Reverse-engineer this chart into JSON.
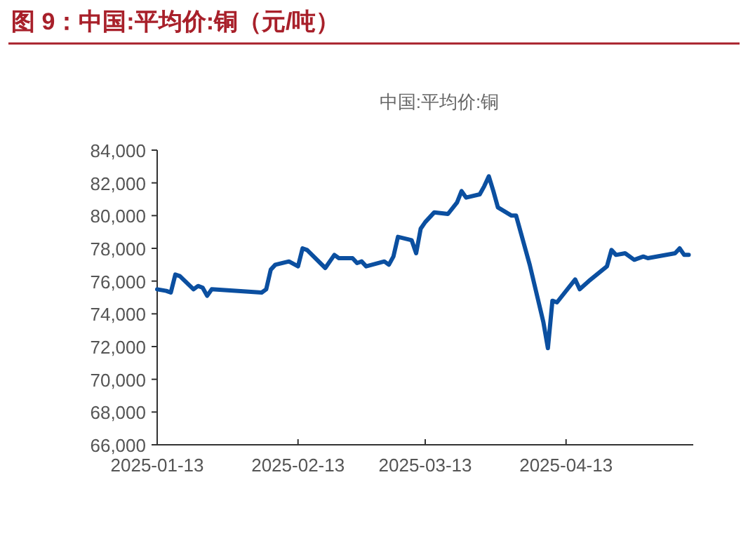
{
  "chart_data": {
    "type": "line",
    "title": "图 9：中国:平均价:铜（元/吨）",
    "subtitle": "中国:平均价:铜",
    "x": [
      "2025-01-13",
      "2025-01-15",
      "2025-01-16",
      "2025-01-17",
      "2025-01-18",
      "2025-01-21",
      "2025-01-22",
      "2025-01-23",
      "2025-01-24",
      "2025-01-25",
      "2025-02-05",
      "2025-02-06",
      "2025-02-07",
      "2025-02-08",
      "2025-02-11",
      "2025-02-13",
      "2025-02-14",
      "2025-02-15",
      "2025-02-19",
      "2025-02-21",
      "2025-02-22",
      "2025-02-25",
      "2025-02-26",
      "2025-02-27",
      "2025-02-28",
      "2025-03-04",
      "2025-03-05",
      "2025-03-06",
      "2025-03-07",
      "2025-03-10",
      "2025-03-11",
      "2025-03-12",
      "2025-03-13",
      "2025-03-15",
      "2025-03-18",
      "2025-03-20",
      "2025-03-21",
      "2025-03-22",
      "2025-03-25",
      "2025-03-26",
      "2025-03-27",
      "2025-03-28",
      "2025-03-29",
      "2025-04-01",
      "2025-04-02",
      "2025-04-05",
      "2025-04-08",
      "2025-04-09",
      "2025-04-10",
      "2025-04-11",
      "2025-04-15",
      "2025-04-16",
      "2025-04-18",
      "2025-04-22",
      "2025-04-23",
      "2025-04-24",
      "2025-04-26",
      "2025-04-28",
      "2025-04-30",
      "2025-05-01",
      "2025-05-07",
      "2025-05-08",
      "2025-05-09",
      "2025-05-10"
    ],
    "series": [
      {
        "color": "#0b4fa0",
        "values": [
          75500,
          75400,
          75300,
          76400,
          76300,
          75500,
          75700,
          75600,
          75100,
          75500,
          75300,
          75500,
          76700,
          77000,
          77200,
          76900,
          78000,
          77900,
          76800,
          77600,
          77400,
          77400,
          77100,
          77200,
          76900,
          77200,
          77000,
          77500,
          78700,
          78500,
          77700,
          79200,
          79600,
          80200,
          80100,
          80800,
          81500,
          81100,
          81300,
          81800,
          82400,
          81500,
          80500,
          80000,
          80000,
          77000,
          73500,
          71900,
          74800,
          74700,
          76100,
          75500,
          76000,
          76900,
          77900,
          77600,
          77700,
          77300,
          77500,
          77400,
          77700,
          78000,
          77600,
          77600
        ]
      }
    ],
    "xlim": [
      "2025-01-13",
      "2025-05-11"
    ],
    "xticks": [
      "2025-01-13",
      "2025-02-13",
      "2025-03-13",
      "2025-04-13"
    ],
    "ylim": [
      66000,
      84000
    ],
    "yticks": [
      {
        "value": 66000,
        "label": "66,000"
      },
      {
        "value": 68000,
        "label": "68,000"
      },
      {
        "value": 70000,
        "label": "70,000"
      },
      {
        "value": 72000,
        "label": "72,000"
      },
      {
        "value": 74000,
        "label": "74,000"
      },
      {
        "value": 76000,
        "label": "76,000"
      },
      {
        "value": 78000,
        "label": "78,000"
      },
      {
        "value": 80000,
        "label": "80,000"
      },
      {
        "value": 82000,
        "label": "82,000"
      },
      {
        "value": 84000,
        "label": "84,000"
      }
    ]
  }
}
